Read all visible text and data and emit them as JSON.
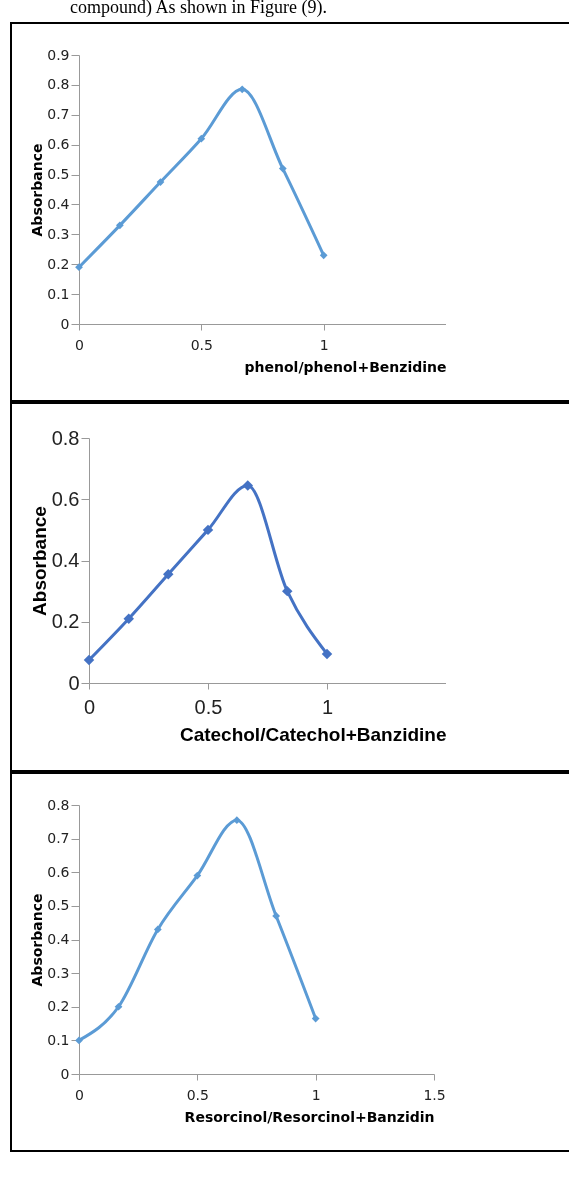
{
  "chart_data": [
    {
      "type": "line",
      "annotations": [
        "compound) As shown in Figure (9)."
      ],
      "xlabel": "phenol/phenol+Benzidine",
      "ylabel": "Absorbance",
      "x": [
        0,
        0.167,
        0.333,
        0.5,
        0.667,
        0.833,
        1
      ],
      "series": [
        {
          "color": "#5b9bd5",
          "values": [
            0.19,
            0.33,
            0.475,
            0.62,
            0.785,
            0.52,
            0.23
          ]
        }
      ],
      "xlim": [
        0,
        1.5
      ],
      "xticks": [
        0,
        0.5,
        1
      ],
      "ylim": [
        0,
        0.9
      ],
      "yticks": [
        0,
        0.1,
        0.2,
        0.3,
        0.4,
        0.5,
        0.6,
        0.7,
        0.8,
        0.9
      ],
      "marker": "diamond",
      "grid": false
    },
    {
      "type": "line",
      "xlabel": "Catechol/Catechol+Banzidine",
      "ylabel": "Absorbance",
      "x": [
        0,
        0.167,
        0.333,
        0.5,
        0.667,
        0.833,
        1
      ],
      "series": [
        {
          "color": "#4472c4",
          "values": [
            0.075,
            0.21,
            0.355,
            0.5,
            0.645,
            0.3,
            0.095
          ]
        }
      ],
      "xlim": [
        0,
        1.5
      ],
      "xticks": [
        0,
        0.5,
        1
      ],
      "ylim": [
        0,
        0.8
      ],
      "yticks": [
        0,
        0.2,
        0.4,
        0.6,
        0.8
      ],
      "marker": "diamond",
      "grid": false
    },
    {
      "type": "line",
      "xlabel": "Resorcinol/Resorcinol+Banzidin",
      "ylabel": "Absorbance",
      "x": [
        0,
        0.167,
        0.333,
        0.5,
        0.667,
        0.833,
        1
      ],
      "series": [
        {
          "color": "#5b9bd5",
          "values": [
            0.1,
            0.2,
            0.43,
            0.59,
            0.755,
            0.47,
            0.165
          ]
        }
      ],
      "xlim": [
        0,
        1.5
      ],
      "xticks": [
        0,
        0.5,
        1,
        1.5
      ],
      "ylim": [
        0,
        0.8
      ],
      "yticks": [
        0,
        0.1,
        0.2,
        0.3,
        0.4,
        0.5,
        0.6,
        0.7,
        0.8
      ],
      "marker": "diamond",
      "grid": false
    }
  ]
}
